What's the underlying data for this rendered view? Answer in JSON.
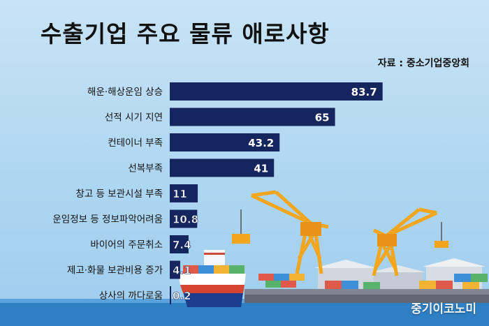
{
  "header": {
    "title": "수출기업 주요 물류 애로사항",
    "source": "자료 : 중소기업중앙회"
  },
  "watermark": "중기이코노미",
  "colors": {
    "bar": "#15265e",
    "bar_label": "#ffffff",
    "sea": "#2e7fc4"
  },
  "chart_data": {
    "type": "bar",
    "orientation": "horizontal",
    "title": "수출기업 주요 물류 애로사항",
    "categories": [
      "해운·해상운임 상승",
      "선적 시기 지연",
      "컨테이너 부족",
      "선복부족",
      "창고 등 보관시설 부족",
      "운임정보 등 정보파악어려움",
      "바이어의 주문취소",
      "제고·화물 보관비용 증가",
      "상사의 까다로움"
    ],
    "values": [
      83.7,
      65,
      43.2,
      41,
      11,
      10.8,
      7.4,
      4.1,
      0.2
    ],
    "labels": [
      "83.7",
      "65",
      "43.2",
      "41",
      "11",
      "10.8",
      "7.4",
      "4.1",
      "0.2"
    ],
    "xlim": [
      0,
      90
    ],
    "grid": false,
    "legend": "none"
  }
}
